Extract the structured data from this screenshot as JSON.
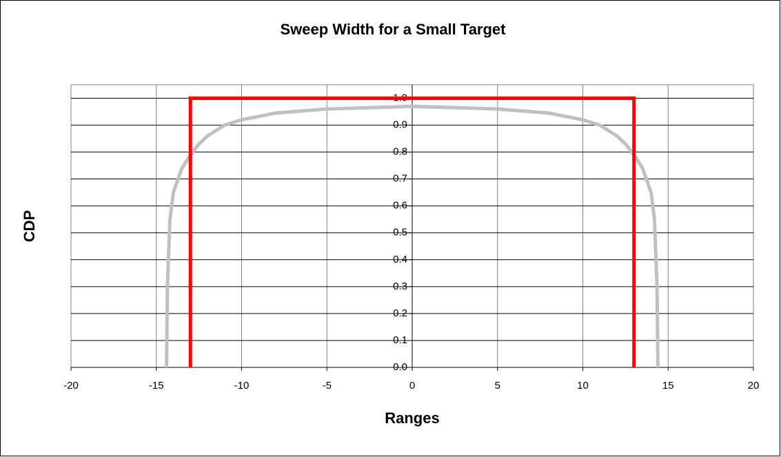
{
  "chart_data": {
    "type": "line",
    "title": "Sweep Width for a Small Target",
    "xlabel": "Ranges",
    "ylabel": "CDP",
    "xlim": [
      -20,
      20
    ],
    "xticks": [
      -20,
      -15,
      -10,
      -5,
      0,
      5,
      10,
      15,
      20
    ],
    "ylim": [
      0,
      1.05
    ],
    "yticks": [
      {
        "value": 0,
        "label": "0.0"
      },
      0.1,
      0.2,
      0.3,
      0.4,
      0.5,
      0.6,
      0.7,
      0.8,
      0.9,
      {
        "value": 1,
        "label": "1.0"
      }
    ],
    "grid": true,
    "series": [
      {
        "color": "#c0c0c0",
        "x": [
          -14.4,
          -14.35,
          -14.2,
          -14,
          -13.5,
          -13,
          -12.5,
          -12,
          -11,
          -10,
          -8,
          -5,
          0,
          5,
          8,
          10,
          11,
          12,
          12.5,
          13,
          13.5,
          14,
          14.2,
          14.35,
          14.4
        ],
        "values": [
          0,
          0.3,
          0.55,
          0.65,
          0.74,
          0.79,
          0.83,
          0.86,
          0.9,
          0.92,
          0.945,
          0.96,
          0.97,
          0.96,
          0.945,
          0.92,
          0.9,
          0.86,
          0.83,
          0.79,
          0.74,
          0.65,
          0.55,
          0.3,
          0
        ]
      },
      {
        "color": "#ff0000",
        "x": [
          -13,
          -13,
          13,
          13
        ],
        "values": [
          0,
          1,
          1,
          0
        ]
      }
    ]
  }
}
